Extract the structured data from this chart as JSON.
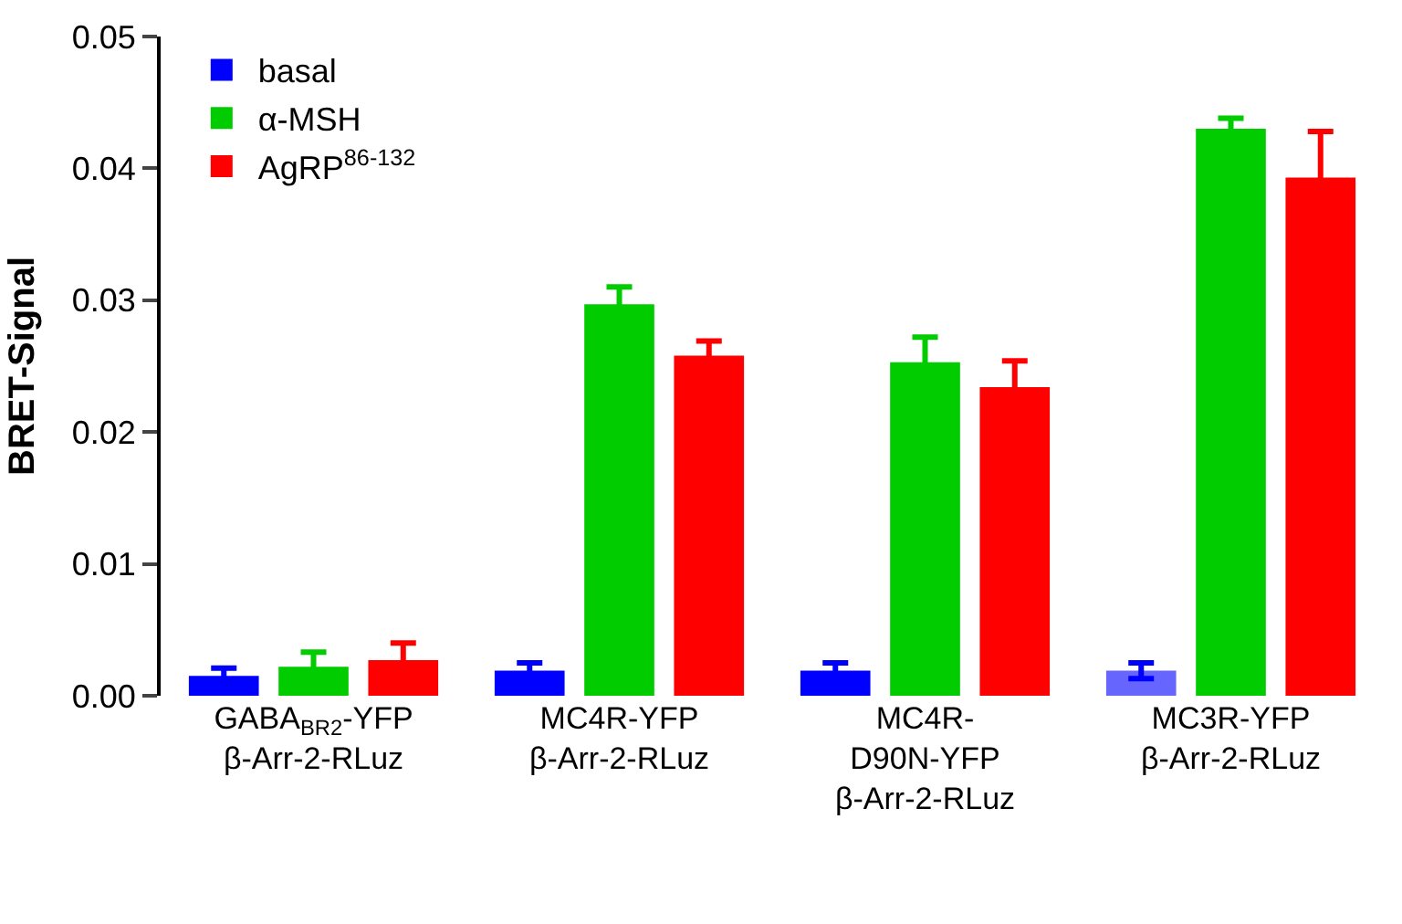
{
  "chart_data": {
    "type": "bar",
    "ylabel": "BRET-Signal",
    "categories": [
      "GABA$_{BR2}$-YFP\nβ-Arr-2-RLuz",
      "MC4R-YFP\nβ-Arr-2-RLuz",
      "MC4R-\nD90N-YFP\nβ-Arr-2-RLuz",
      "MC3R-YFP\nβ-Arr-2-RLuz"
    ],
    "series": [
      {
        "name": "basal",
        "color": "#0000ff",
        "colors": [
          "#0000ff",
          "#0000ff",
          "#0000ff",
          "#6666ff"
        ],
        "values": [
          0.0015,
          0.0019,
          0.0019,
          0.0019
        ],
        "errors": [
          0.0006,
          0.0006,
          0.0006,
          0.0006
        ]
      },
      {
        "name": "α-MSH",
        "color": "#00cc00",
        "values": [
          0.0022,
          0.0297,
          0.0253,
          0.043
        ],
        "errors": [
          0.0011,
          0.0013,
          0.0019,
          0.0008
        ]
      },
      {
        "name": "AgRP$^{86-132}$",
        "color": "#ff0000",
        "values": [
          0.0027,
          0.0258,
          0.0234,
          0.0393
        ],
        "errors": [
          0.0013,
          0.0011,
          0.002,
          0.0035
        ]
      }
    ],
    "ylim": [
      0,
      0.05
    ],
    "yticks": [
      {
        "value": 0,
        "label": "0.00"
      },
      {
        "value": 0.01,
        "label": "0.01"
      },
      {
        "value": 0.02,
        "label": "0.02"
      },
      {
        "value": 0.03,
        "label": "0.03"
      },
      {
        "value": 0.04,
        "label": "0.04"
      },
      {
        "value": 0.05,
        "label": "0.05"
      }
    ],
    "legend": "top left"
  }
}
